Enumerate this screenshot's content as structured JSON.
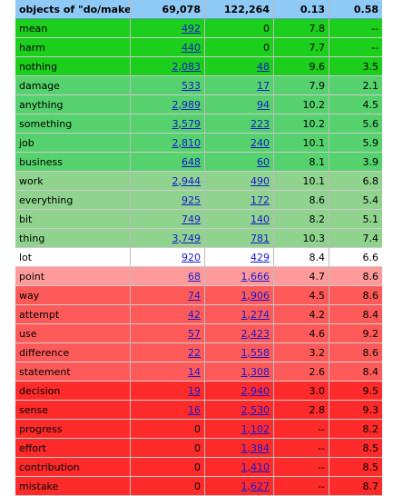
{
  "header": {
    "title": "objects of \"do/make\"",
    "total_a": "69,078",
    "total_b": "122,264",
    "ratio_a": "0.13",
    "ratio_b": "0.58"
  },
  "band_colors": {
    "g1": "#1ccf1c",
    "g2": "#55d26d",
    "g3": "#8fd38f",
    "w": "#ffffff",
    "r1": "#ff9a9a",
    "r2": "#ff5a5a",
    "r3": "#ff2b2b",
    "header": "#8fcaf6",
    "link": "#1a17cc"
  },
  "rows": [
    {
      "word": "mean",
      "a": "492",
      "a_link": true,
      "b": "0",
      "b_link": false,
      "c": "7.8",
      "d": "--",
      "band": "g1"
    },
    {
      "word": "harm",
      "a": "440",
      "a_link": true,
      "b": "0",
      "b_link": false,
      "c": "7.7",
      "d": "--",
      "band": "g1"
    },
    {
      "word": "nothing",
      "a": "2,083",
      "a_link": true,
      "b": "48",
      "b_link": true,
      "c": "9.6",
      "d": "3.5",
      "band": "g1"
    },
    {
      "word": "damage",
      "a": "533",
      "a_link": true,
      "b": "17",
      "b_link": true,
      "c": "7.9",
      "d": "2.1",
      "band": "g2"
    },
    {
      "word": "anything",
      "a": "2,989",
      "a_link": true,
      "b": "94",
      "b_link": true,
      "c": "10.2",
      "d": "4.5",
      "band": "g2"
    },
    {
      "word": "something",
      "a": "3,579",
      "a_link": true,
      "b": "223",
      "b_link": true,
      "c": "10.2",
      "d": "5.6",
      "band": "g2"
    },
    {
      "word": "job",
      "a": "2,810",
      "a_link": true,
      "b": "240",
      "b_link": true,
      "c": "10.1",
      "d": "5.9",
      "band": "g2"
    },
    {
      "word": "business",
      "a": "648",
      "a_link": true,
      "b": "60",
      "b_link": true,
      "c": "8.1",
      "d": "3.9",
      "band": "g2"
    },
    {
      "word": "work",
      "a": "2,944",
      "a_link": true,
      "b": "490",
      "b_link": true,
      "c": "10.1",
      "d": "6.8",
      "band": "g3"
    },
    {
      "word": "everything",
      "a": "925",
      "a_link": true,
      "b": "172",
      "b_link": true,
      "c": "8.6",
      "d": "5.4",
      "band": "g3"
    },
    {
      "word": "bit",
      "a": "749",
      "a_link": true,
      "b": "140",
      "b_link": true,
      "c": "8.2",
      "d": "5.1",
      "band": "g3"
    },
    {
      "word": "thing",
      "a": "3,749",
      "a_link": true,
      "b": "781",
      "b_link": true,
      "c": "10.3",
      "d": "7.4",
      "band": "g3"
    },
    {
      "word": "lot",
      "a": "920",
      "a_link": true,
      "b": "429",
      "b_link": true,
      "c": "8.4",
      "d": "6.6",
      "band": "w"
    },
    {
      "word": "point",
      "a": "68",
      "a_link": true,
      "b": "1,666",
      "b_link": true,
      "c": "4.7",
      "d": "8.6",
      "band": "r1"
    },
    {
      "word": "way",
      "a": "74",
      "a_link": true,
      "b": "1,906",
      "b_link": true,
      "c": "4.5",
      "d": "8.6",
      "band": "r2"
    },
    {
      "word": "attempt",
      "a": "42",
      "a_link": true,
      "b": "1,274",
      "b_link": true,
      "c": "4.2",
      "d": "8.4",
      "band": "r2"
    },
    {
      "word": "use",
      "a": "57",
      "a_link": true,
      "b": "2,423",
      "b_link": true,
      "c": "4.6",
      "d": "9.2",
      "band": "r2"
    },
    {
      "word": "difference",
      "a": "22",
      "a_link": true,
      "b": "1,558",
      "b_link": true,
      "c": "3.2",
      "d": "8.6",
      "band": "r2"
    },
    {
      "word": "statement",
      "a": "14",
      "a_link": true,
      "b": "1,308",
      "b_link": true,
      "c": "2.6",
      "d": "8.4",
      "band": "r2"
    },
    {
      "word": "decision",
      "a": "19",
      "a_link": true,
      "b": "2,940",
      "b_link": true,
      "c": "3.0",
      "d": "9.5",
      "band": "r3"
    },
    {
      "word": "sense",
      "a": "16",
      "a_link": true,
      "b": "2,530",
      "b_link": true,
      "c": "2.8",
      "d": "9.3",
      "band": "r3"
    },
    {
      "word": "progress",
      "a": "0",
      "a_link": false,
      "b": "1,102",
      "b_link": true,
      "c": "--",
      "d": "8.2",
      "band": "r3"
    },
    {
      "word": "effort",
      "a": "0",
      "a_link": false,
      "b": "1,384",
      "b_link": true,
      "c": "--",
      "d": "8.5",
      "band": "r3"
    },
    {
      "word": "contribution",
      "a": "0",
      "a_link": false,
      "b": "1,410",
      "b_link": true,
      "c": "--",
      "d": "8.5",
      "band": "r3"
    },
    {
      "word": "mistake",
      "a": "0",
      "a_link": false,
      "b": "1,627",
      "b_link": true,
      "c": "--",
      "d": "8.7",
      "band": "r3"
    }
  ]
}
